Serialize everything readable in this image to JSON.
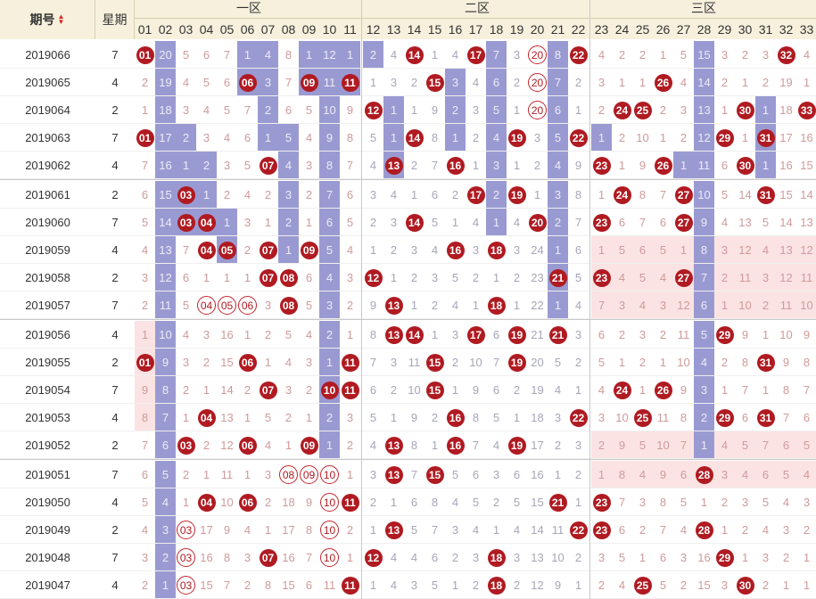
{
  "header": {
    "period_label": "期号",
    "weekday_label": "星期",
    "zones": [
      "一区",
      "二区",
      "三区"
    ],
    "numbers": [
      "01",
      "02",
      "03",
      "04",
      "05",
      "06",
      "07",
      "08",
      "09",
      "10",
      "11",
      "12",
      "13",
      "14",
      "15",
      "16",
      "17",
      "18",
      "19",
      "20",
      "21",
      "22",
      "23",
      "24",
      "25",
      "26",
      "27",
      "28",
      "29",
      "30",
      "31",
      "32",
      "33"
    ]
  },
  "rows": [
    {
      "period": "2019066",
      "weekday": "7",
      "cells": [
        "B01",
        "20",
        "5",
        "6",
        "7",
        "1",
        "4",
        "8",
        "1",
        "12",
        "1",
        "2",
        "4",
        "B14",
        "1",
        "4",
        "B17",
        "7",
        "3",
        "R20",
        "8",
        "B22",
        "4",
        "2",
        "2",
        "1",
        "5",
        "15",
        "3",
        "2",
        "3",
        "B32",
        "4"
      ]
    },
    {
      "period": "2019065",
      "weekday": "4",
      "cells": [
        "2",
        "19",
        "4",
        "5",
        "6",
        "B06",
        "3",
        "7",
        "B09",
        "11",
        "B11",
        "1",
        "3",
        "2",
        "B15",
        "3",
        "4",
        "6",
        "2",
        "R20",
        "7",
        "2",
        "3",
        "1",
        "1",
        "B26",
        "4",
        "14",
        "2",
        "1",
        "2",
        "19",
        "1"
      ]
    },
    {
      "period": "2019064",
      "weekday": "2",
      "cells": [
        "1",
        "18",
        "3",
        "4",
        "5",
        "7",
        "2",
        "6",
        "5",
        "10",
        "9",
        "B12",
        "1",
        "1",
        "9",
        "2",
        "3",
        "5",
        "1",
        "R20",
        "6",
        "1",
        "2",
        "B24",
        "B25",
        "2",
        "3",
        "13",
        "1",
        "B30",
        "1",
        "18",
        "B33"
      ]
    },
    {
      "period": "2019063",
      "weekday": "7",
      "cells": [
        "B01",
        "17",
        "2",
        "3",
        "4",
        "6",
        "1",
        "5",
        "4",
        "9",
        "8",
        "5",
        "1",
        "B14",
        "8",
        "1",
        "2",
        "4",
        "B19",
        "3",
        "5",
        "B22",
        "1",
        "2",
        "10",
        "1",
        "2",
        "12",
        "B29",
        "1",
        "B31",
        "17",
        "16"
      ]
    },
    {
      "period": "2019062",
      "weekday": "4",
      "cells": [
        "7",
        "16",
        "1",
        "2",
        "3",
        "5",
        "B07",
        "4",
        "3",
        "8",
        "7",
        "4",
        "B13",
        "2",
        "7",
        "B16",
        "1",
        "3",
        "1",
        "2",
        "4",
        "9",
        "B23",
        "1",
        "9",
        "B26",
        "1",
        "11",
        "6",
        "B30",
        "1",
        "16",
        "15"
      ]
    },
    {
      "period": "2019061",
      "weekday": "2",
      "cells": [
        "6",
        "15",
        "B03",
        "1",
        "2",
        "4",
        "2",
        "3",
        "2",
        "7",
        "6",
        "3",
        "4",
        "1",
        "6",
        "2",
        "B17",
        "2",
        "B19",
        "1",
        "3",
        "8",
        "1",
        "B24",
        "8",
        "7",
        "B27",
        "10",
        "5",
        "14",
        "B31",
        "15",
        "14"
      ]
    },
    {
      "period": "2019060",
      "weekday": "7",
      "cells": [
        "5",
        "14",
        "B03",
        "B04",
        "1",
        "3",
        "1",
        "2",
        "1",
        "6",
        "5",
        "2",
        "3",
        "B14",
        "5",
        "1",
        "4",
        "1",
        "4",
        "B20",
        "2",
        "7",
        "B23",
        "6",
        "7",
        "6",
        "B27",
        "9",
        "4",
        "13",
        "5",
        "14",
        "13"
      ]
    },
    {
      "period": "2019059",
      "weekday": "4",
      "cells": [
        "4",
        "13",
        "7",
        "B04",
        "B05",
        "2",
        "B07",
        "1",
        "B09",
        "5",
        "4",
        "1",
        "2",
        "3",
        "4",
        "B16",
        "3",
        "B18",
        "3",
        "24",
        "1",
        "6",
        "1",
        "5",
        "6",
        "5",
        "1",
        "8",
        "3",
        "12",
        "4",
        "13",
        "12"
      ]
    },
    {
      "period": "2019058",
      "weekday": "2",
      "cells": [
        "3",
        "12",
        "6",
        "1",
        "1",
        "1",
        "B07",
        "B08",
        "6",
        "4",
        "3",
        "B12",
        "1",
        "2",
        "3",
        "5",
        "2",
        "1",
        "2",
        "23",
        "B21",
        "5",
        "B23",
        "4",
        "5",
        "4",
        "B27",
        "7",
        "2",
        "11",
        "3",
        "12",
        "11"
      ]
    },
    {
      "period": "2019057",
      "weekday": "7",
      "cells": [
        "2",
        "11",
        "5",
        "R04",
        "R05",
        "R06",
        "3",
        "B08",
        "5",
        "3",
        "2",
        "9",
        "B13",
        "1",
        "2",
        "4",
        "1",
        "B18",
        "1",
        "22",
        "1",
        "4",
        "7",
        "3",
        "4",
        "3",
        "12",
        "6",
        "1",
        "10",
        "2",
        "11",
        "10"
      ]
    },
    {
      "period": "2019056",
      "weekday": "4",
      "cells": [
        "1",
        "10",
        "4",
        "3",
        "16",
        "1",
        "2",
        "5",
        "4",
        "2",
        "1",
        "8",
        "B13",
        "B14",
        "1",
        "3",
        "B17",
        "6",
        "B19",
        "21",
        "B21",
        "3",
        "6",
        "2",
        "3",
        "2",
        "11",
        "5",
        "B29",
        "9",
        "1",
        "10",
        "9"
      ]
    },
    {
      "period": "2019055",
      "weekday": "2",
      "cells": [
        "B01",
        "9",
        "3",
        "2",
        "15",
        "B06",
        "1",
        "4",
        "3",
        "1",
        "B11",
        "7",
        "3",
        "11",
        "B15",
        "2",
        "10",
        "7",
        "B19",
        "20",
        "5",
        "2",
        "5",
        "1",
        "2",
        "1",
        "10",
        "4",
        "2",
        "8",
        "B31",
        "9",
        "8"
      ]
    },
    {
      "period": "2019054",
      "weekday": "7",
      "cells": [
        "9",
        "8",
        "2",
        "1",
        "14",
        "2",
        "B07",
        "3",
        "2",
        "B10",
        "B11",
        "6",
        "2",
        "10",
        "B15",
        "1",
        "9",
        "6",
        "2",
        "19",
        "4",
        "1",
        "4",
        "B24",
        "1",
        "B26",
        "9",
        "3",
        "1",
        "7",
        "1",
        "8",
        "7"
      ]
    },
    {
      "period": "2019053",
      "weekday": "4",
      "cells": [
        "8",
        "7",
        "1",
        "B04",
        "13",
        "1",
        "5",
        "2",
        "1",
        "2",
        "3",
        "5",
        "1",
        "9",
        "2",
        "B16",
        "8",
        "5",
        "1",
        "18",
        "3",
        "B22",
        "3",
        "10",
        "B25",
        "11",
        "8",
        "2",
        "B29",
        "6",
        "B31",
        "7",
        "6"
      ]
    },
    {
      "period": "2019052",
      "weekday": "2",
      "cells": [
        "7",
        "6",
        "B03",
        "2",
        "12",
        "B06",
        "4",
        "1",
        "B09",
        "1",
        "2",
        "4",
        "B13",
        "8",
        "1",
        "B16",
        "7",
        "4",
        "B19",
        "17",
        "2",
        "3",
        "2",
        "9",
        "5",
        "10",
        "7",
        "1",
        "4",
        "5",
        "7",
        "6",
        "5"
      ]
    },
    {
      "period": "2019051",
      "weekday": "7",
      "cells": [
        "6",
        "5",
        "2",
        "1",
        "11",
        "1",
        "3",
        "R08",
        "R09",
        "R10",
        "1",
        "3",
        "B13",
        "7",
        "B15",
        "5",
        "6",
        "3",
        "6",
        "16",
        "1",
        "2",
        "1",
        "8",
        "4",
        "9",
        "6",
        "B28",
        "3",
        "4",
        "6",
        "5",
        "4"
      ]
    },
    {
      "period": "2019050",
      "weekday": "4",
      "cells": [
        "5",
        "4",
        "1",
        "B04",
        "10",
        "B06",
        "2",
        "18",
        "9",
        "R10",
        "B11",
        "2",
        "1",
        "6",
        "8",
        "4",
        "5",
        "2",
        "5",
        "15",
        "B21",
        "1",
        "B23",
        "7",
        "3",
        "8",
        "5",
        "1",
        "2",
        "3",
        "5",
        "4",
        "3"
      ]
    },
    {
      "period": "2019049",
      "weekday": "2",
      "cells": [
        "4",
        "3",
        "R03",
        "17",
        "9",
        "4",
        "1",
        "17",
        "8",
        "R10",
        "2",
        "1",
        "B13",
        "5",
        "7",
        "3",
        "4",
        "1",
        "4",
        "14",
        "11",
        "B22",
        "B23",
        "6",
        "2",
        "7",
        "4",
        "B28",
        "1",
        "2",
        "4",
        "3",
        "2"
      ]
    },
    {
      "period": "2019048",
      "weekday": "7",
      "cells": [
        "3",
        "2",
        "R03",
        "16",
        "8",
        "3",
        "B07",
        "16",
        "7",
        "R10",
        "1",
        "B12",
        "4",
        "4",
        "6",
        "2",
        "3",
        "B18",
        "3",
        "13",
        "10",
        "2",
        "3",
        "5",
        "1",
        "6",
        "3",
        "16",
        "B29",
        "1",
        "3",
        "2",
        "1"
      ]
    },
    {
      "period": "2019047",
      "weekday": "4",
      "cells": [
        "2",
        "1",
        "R03",
        "15",
        "7",
        "2",
        "8",
        "15",
        "6",
        "11",
        "B11",
        "1",
        "4",
        "3",
        "5",
        "1",
        "2",
        "B18",
        "2",
        "12",
        "9",
        "1",
        "2",
        "4",
        "B25",
        "5",
        "2",
        "15",
        "3",
        "B30",
        "2",
        "1",
        "1"
      ]
    }
  ],
  "purple_columns": [
    {
      "col": "02",
      "from": 0,
      "to": 19
    },
    {
      "col": "03",
      "from": 3,
      "to": 6
    },
    {
      "col": "04",
      "from": 4,
      "to": 6
    },
    {
      "col": "05",
      "from": 6,
      "to": 7
    },
    {
      "col": "06",
      "from": 0,
      "to": 1
    },
    {
      "col": "07",
      "from": 0,
      "to": 3
    },
    {
      "col": "08",
      "from": 3,
      "to": 7
    },
    {
      "col": "09",
      "from": 0,
      "to": 1
    },
    {
      "col": "10",
      "from": 0,
      "to": 14
    },
    {
      "col": "11",
      "from": 0,
      "to": 1
    },
    {
      "col": "12",
      "from": 0,
      "to": 0
    },
    {
      "col": "13",
      "from": 2,
      "to": 4
    },
    {
      "col": "16",
      "from": 1,
      "to": 3
    },
    {
      "col": "18",
      "from": 0,
      "to": 6
    },
    {
      "col": "21",
      "from": 0,
      "to": 9
    },
    {
      "col": "23",
      "from": 3,
      "to": 3
    },
    {
      "col": "27",
      "from": 4,
      "to": 4
    },
    {
      "col": "28",
      "from": 0,
      "to": 14
    },
    {
      "col": "31",
      "from": 2,
      "to": 4
    }
  ],
  "colors": {
    "header_bg": "#f7f0dc",
    "purple": "#9a9ad2",
    "ball": "#b01a21",
    "miss_zone1": "#d09a9a",
    "miss_zone2": "#a6a6b9",
    "pink_band": "#fbe3e3"
  }
}
